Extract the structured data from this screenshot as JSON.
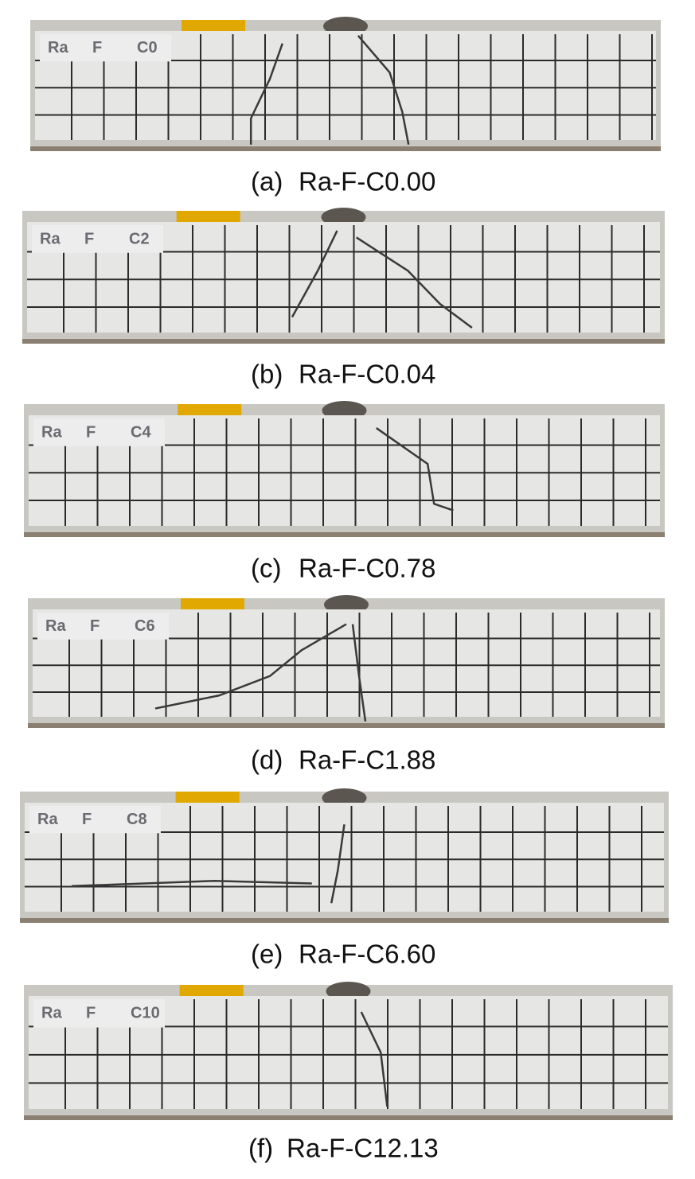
{
  "panels": [
    {
      "tag": "(a)",
      "caption": "Ra-F-C0.00",
      "labels": [
        "Ra",
        "F",
        "C0"
      ]
    },
    {
      "tag": "(b)",
      "caption": "Ra-F-C0.04",
      "labels": [
        "Ra",
        "F",
        "C2"
      ]
    },
    {
      "tag": "(c)",
      "caption": "Ra-F-C0.78",
      "labels": [
        "Ra",
        "F",
        "C4"
      ]
    },
    {
      "tag": "(d)",
      "caption": "Ra-F-C1.88",
      "labels": [
        "Ra",
        "F",
        "C6"
      ]
    },
    {
      "tag": "(e)",
      "caption": "Ra-F-C6.60",
      "labels": [
        "Ra",
        "F",
        "C8"
      ]
    },
    {
      "tag": "(f)",
      "caption": "Ra-F-C12.13",
      "labels": [
        "Ra",
        "F",
        "C10"
      ]
    }
  ]
}
